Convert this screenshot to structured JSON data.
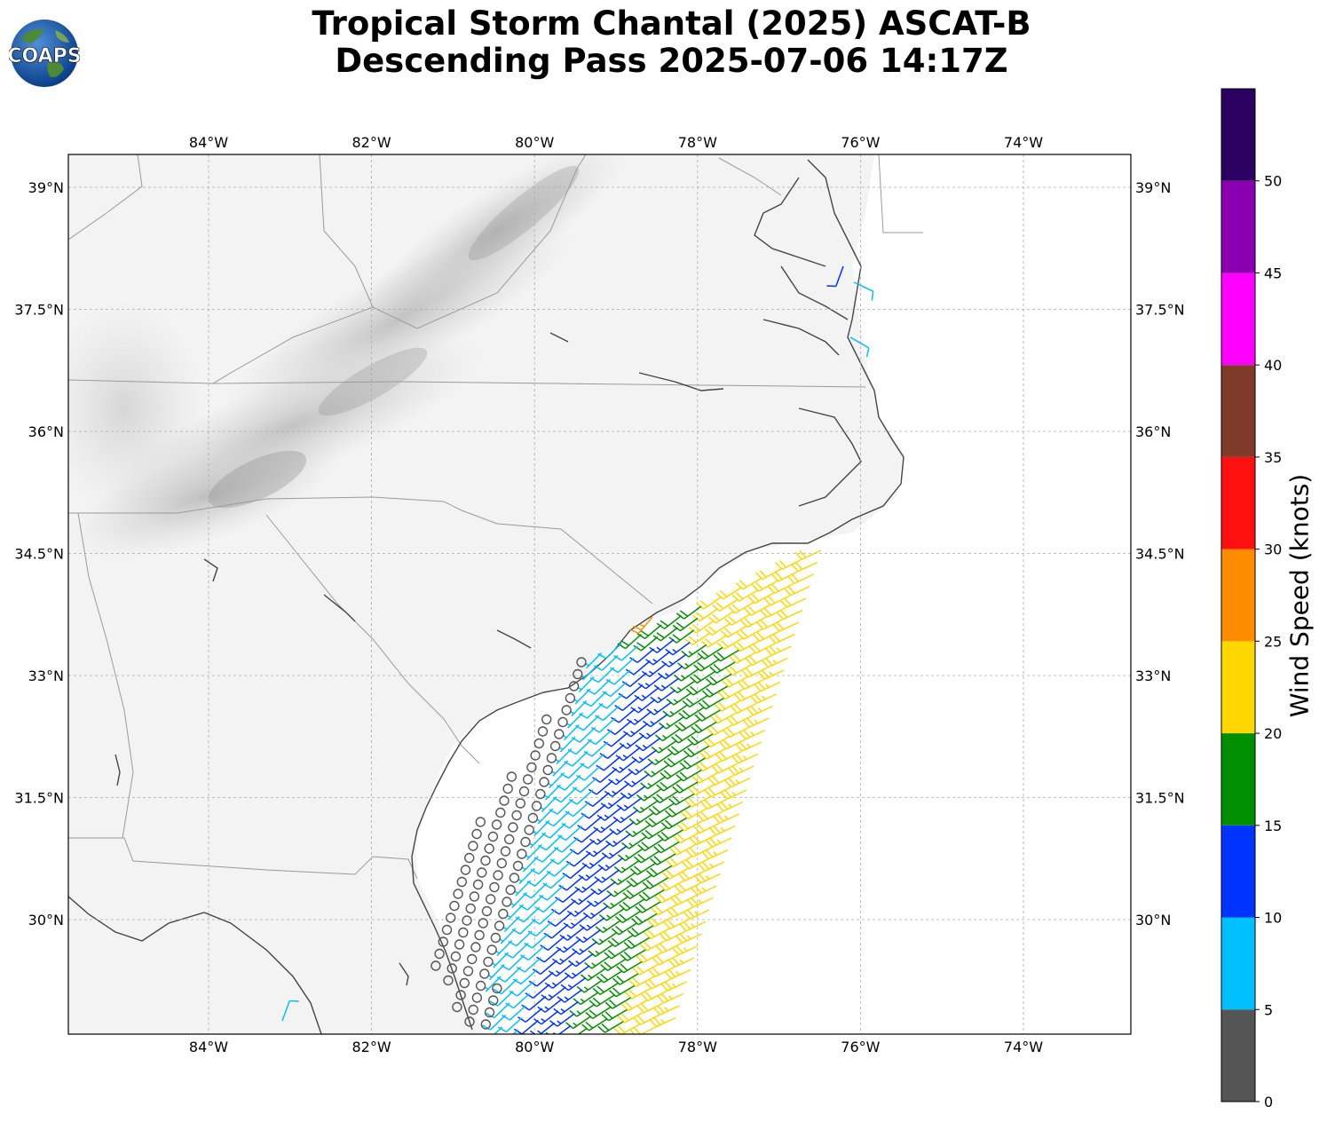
{
  "header": {
    "title_line1": "Tropical Storm Chantal (2025) ASCAT-B",
    "title_line2": "Descending Pass 2025-07-06 14:17Z",
    "logo_text": "COAPS"
  },
  "map": {
    "lon_range": [
      -85.75,
      -72.7
    ],
    "lat_range": [
      28.2,
      39.0
    ],
    "lon_ticks": [
      {
        "lon": -84,
        "label": "84°W"
      },
      {
        "lon": -82,
        "label": "82°W"
      },
      {
        "lon": -80,
        "label": "80°W"
      },
      {
        "lon": -78,
        "label": "78°W"
      },
      {
        "lon": -76,
        "label": "76°W"
      },
      {
        "lon": -74,
        "label": "74°W"
      }
    ],
    "lat_ticks": [
      {
        "lat": 39.0,
        "label": "39°N"
      },
      {
        "lat": 37.5,
        "label": "37.5°N"
      },
      {
        "lat": 36.0,
        "label": "36°N"
      },
      {
        "lat": 34.5,
        "label": "34.5°N"
      },
      {
        "lat": 33.0,
        "label": "33°N"
      },
      {
        "lat": 31.5,
        "label": "31.5°N"
      },
      {
        "lat": 30.0,
        "label": "30°N"
      }
    ],
    "gridlines": true
  },
  "colorbar": {
    "label": "Wind Speed (knots)",
    "ticks": [
      "0",
      "5",
      "10",
      "15",
      "20",
      "25",
      "30",
      "35",
      "40",
      "45",
      "50"
    ],
    "bins": [
      {
        "from": 0,
        "to": 5,
        "color": "#555555"
      },
      {
        "from": 5,
        "to": 10,
        "color": "#00bfff"
      },
      {
        "from": 10,
        "to": 15,
        "color": "#0033ff"
      },
      {
        "from": 15,
        "to": 20,
        "color": "#008f00"
      },
      {
        "from": 20,
        "to": 25,
        "color": "#ffd700"
      },
      {
        "from": 25,
        "to": 30,
        "color": "#ff8c00"
      },
      {
        "from": 30,
        "to": 35,
        "color": "#ff1010"
      },
      {
        "from": 35,
        "to": 40,
        "color": "#7f3a2a"
      },
      {
        "from": 40,
        "to": 45,
        "color": "#ff00ff"
      },
      {
        "from": 45,
        "to": 50,
        "color": "#8a00b0"
      },
      {
        "from": 50,
        "to": 55,
        "color": "#2a0060"
      }
    ]
  }
}
